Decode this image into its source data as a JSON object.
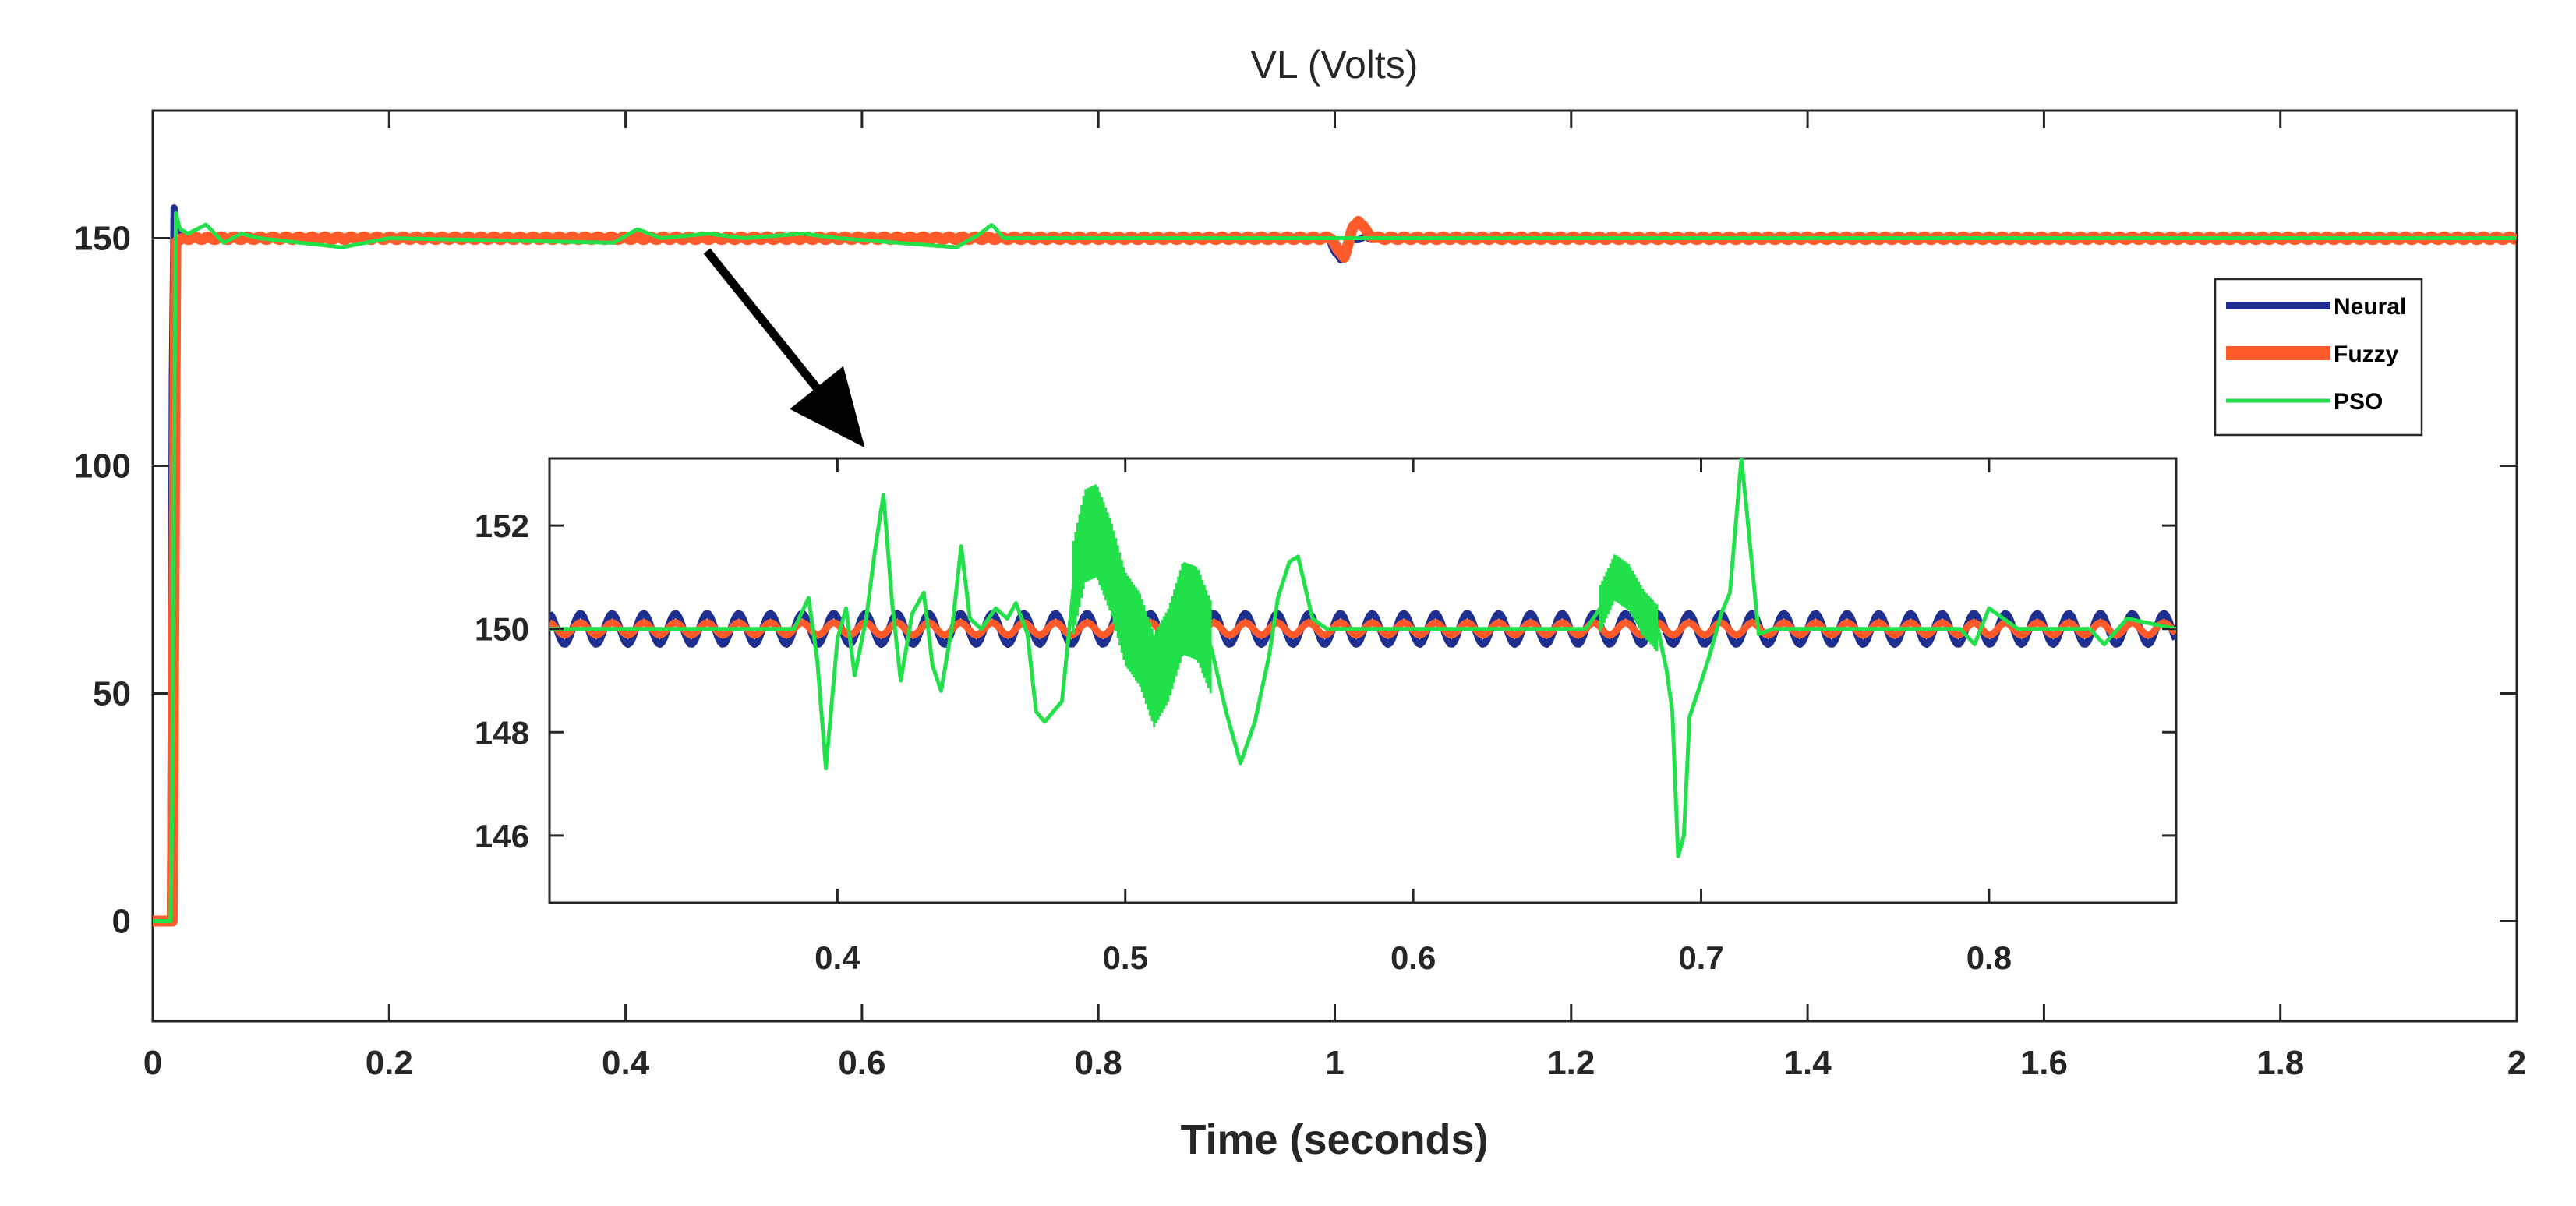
{
  "chart_data": [
    {
      "id": "main",
      "type": "line",
      "title": "VL (Volts)",
      "xlabel": "Time (seconds)",
      "ylabel": "",
      "xlim": [
        0,
        2
      ],
      "ylim": [
        -22,
        178
      ],
      "xticks": [
        0,
        0.2,
        0.4,
        0.6,
        0.8,
        1,
        1.2,
        1.4,
        1.6,
        1.8,
        2
      ],
      "xtick_labels": [
        "0",
        "0.2",
        "0.4",
        "0.6",
        "0.8",
        "1",
        "1.2",
        "1.4",
        "1.6",
        "1.8",
        "2"
      ],
      "yticks": [
        0,
        50,
        100,
        150
      ],
      "ytick_labels": [
        "0",
        "50",
        "100",
        "150"
      ],
      "grid": false,
      "legend_position": "right",
      "series": [
        {
          "name": "Neural",
          "color": "#1f2f8f",
          "steady_value": 150,
          "ripple_amplitude": 0.3,
          "points": [
            [
              0,
              0
            ],
            [
              0.015,
              0
            ],
            [
              0.017,
              159
            ],
            [
              0.02,
              152
            ],
            [
              0.03,
              150
            ],
            [
              0.995,
              150
            ],
            [
              1.0,
              147
            ],
            [
              1.005,
              145
            ],
            [
              1.012,
              149
            ],
            [
              1.02,
              150
            ],
            [
              2,
              150
            ]
          ]
        },
        {
          "name": "Fuzzy",
          "color": "#ff5a2a",
          "steady_value": 150,
          "ripple_amplitude": 0.3,
          "points": [
            [
              0,
              0
            ],
            [
              0.017,
              0
            ],
            [
              0.019,
              149
            ],
            [
              0.025,
              150
            ],
            [
              0.998,
              150
            ],
            [
              1.003,
              147
            ],
            [
              1.008,
              146
            ],
            [
              1.015,
              152
            ],
            [
              1.02,
              154
            ],
            [
              1.028,
              151
            ],
            [
              1.035,
              150
            ],
            [
              2,
              150
            ]
          ]
        },
        {
          "name": "PSO",
          "color": "#22e04a",
          "steady_value": 150,
          "points": [
            [
              0,
              0
            ],
            [
              0.016,
              0
            ],
            [
              0.019,
              156
            ],
            [
              0.023,
              152
            ],
            [
              0.03,
              151
            ],
            [
              0.045,
              153
            ],
            [
              0.06,
              149
            ],
            [
              0.075,
              151
            ],
            [
              0.09,
              150
            ],
            [
              0.16,
              148
            ],
            [
              0.2,
              150
            ],
            [
              0.39,
              149
            ],
            [
              0.41,
              152
            ],
            [
              0.43,
              150
            ],
            [
              0.47,
              151
            ],
            [
              0.5,
              150
            ],
            [
              0.55,
              151
            ],
            [
              0.58,
              150
            ],
            [
              0.68,
              148
            ],
            [
              0.7,
              151
            ],
            [
              0.71,
              153
            ],
            [
              0.72,
              150
            ],
            [
              2,
              150
            ]
          ]
        }
      ]
    },
    {
      "id": "inset",
      "type": "line",
      "xlim": [
        0.3,
        0.865
      ],
      "ylim": [
        144.7,
        153.3
      ],
      "xticks": [
        0.4,
        0.5,
        0.6,
        0.7,
        0.8
      ],
      "xtick_labels": [
        "0.4",
        "0.5",
        "0.6",
        "0.7",
        "0.8"
      ],
      "yticks": [
        146,
        148,
        150,
        152
      ],
      "ytick_labels": [
        "146",
        "148",
        "150",
        "152"
      ],
      "series": [
        {
          "name": "Neural",
          "color": "#1f2f8f",
          "center": 150,
          "ripple_amplitude": 0.3,
          "ripple_period": 0.011
        },
        {
          "name": "Fuzzy",
          "color": "#ff5a2a",
          "center": 150,
          "ripple_amplitude": 0.12,
          "ripple_period": 0.011
        },
        {
          "name": "PSO",
          "color": "#22e04a",
          "points": [
            [
              0.3,
              150
            ],
            [
              0.385,
              150
            ],
            [
              0.39,
              150.6
            ],
            [
              0.393,
              149.4
            ],
            [
              0.396,
              147.3
            ],
            [
              0.4,
              149.8
            ],
            [
              0.403,
              150.4
            ],
            [
              0.406,
              149.1
            ],
            [
              0.41,
              150.2
            ],
            [
              0.413,
              151.5
            ],
            [
              0.416,
              152.6
            ],
            [
              0.419,
              150.5
            ],
            [
              0.422,
              149.0
            ],
            [
              0.426,
              150.3
            ],
            [
              0.43,
              150.7
            ],
            [
              0.433,
              149.3
            ],
            [
              0.436,
              148.8
            ],
            [
              0.44,
              150.1
            ],
            [
              0.443,
              151.6
            ],
            [
              0.446,
              150.2
            ],
            [
              0.45,
              150.0
            ],
            [
              0.455,
              150.4
            ],
            [
              0.459,
              150.2
            ],
            [
              0.462,
              150.5
            ],
            [
              0.466,
              149.9
            ],
            [
              0.469,
              148.4
            ],
            [
              0.472,
              148.2
            ],
            [
              0.478,
              148.6
            ],
            [
              0.482,
              150.8
            ],
            [
              0.486,
              151.8
            ],
            [
              0.49,
              151.9
            ],
            [
              0.495,
              151.2
            ],
            [
              0.5,
              150.2
            ],
            [
              0.505,
              149.8
            ],
            [
              0.51,
              149.0
            ],
            [
              0.515,
              149.5
            ],
            [
              0.52,
              150.4
            ],
            [
              0.525,
              150.3
            ],
            [
              0.53,
              149.6
            ],
            [
              0.535,
              148.4
            ],
            [
              0.54,
              147.4
            ],
            [
              0.545,
              148.2
            ],
            [
              0.55,
              149.5
            ],
            [
              0.553,
              150.6
            ],
            [
              0.557,
              151.3
            ],
            [
              0.56,
              151.4
            ],
            [
              0.565,
              150.2
            ],
            [
              0.57,
              150.0
            ],
            [
              0.66,
              150.0
            ],
            [
              0.665,
              150.4
            ],
            [
              0.67,
              151.0
            ],
            [
              0.675,
              150.8
            ],
            [
              0.68,
              150.3
            ],
            [
              0.685,
              150.0
            ],
            [
              0.688,
              149.2
            ],
            [
              0.69,
              148.4
            ],
            [
              0.692,
              145.6
            ],
            [
              0.694,
              146.0
            ],
            [
              0.696,
              148.3
            ],
            [
              0.699,
              148.8
            ],
            [
              0.703,
              149.5
            ],
            [
              0.707,
              150.3
            ],
            [
              0.71,
              150.7
            ],
            [
              0.712,
              152.0
            ],
            [
              0.714,
              153.3
            ],
            [
              0.716,
              152.2
            ],
            [
              0.72,
              149.9
            ],
            [
              0.725,
              150.0
            ],
            [
              0.79,
              150.0
            ],
            [
              0.795,
              149.7
            ],
            [
              0.8,
              150.4
            ],
            [
              0.81,
              150.0
            ],
            [
              0.835,
              150.0
            ],
            [
              0.84,
              149.7
            ],
            [
              0.848,
              150.2
            ],
            [
              0.865,
              150.0
            ]
          ]
        }
      ]
    }
  ]
}
